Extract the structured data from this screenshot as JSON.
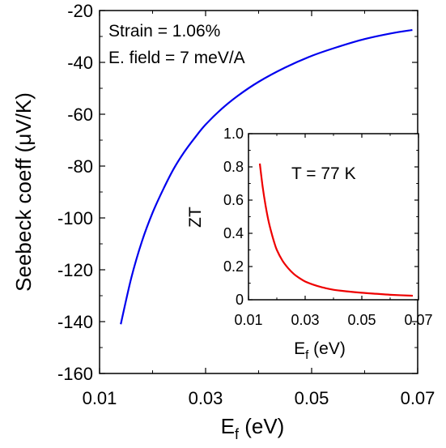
{
  "chart_data": [
    {
      "type": "line",
      "panel": "main",
      "xlabel": "E",
      "xlabel_sub": "f",
      "xlabel_unit": " (eV)",
      "ylabel": "Seebeck coeff (μV/K)",
      "xlim": [
        0.01,
        0.07
      ],
      "ylim": [
        -160,
        -20
      ],
      "xticks": [
        0.01,
        0.03,
        0.05,
        0.07
      ],
      "xtick_labels": [
        "0.01",
        "0.03",
        "0.05",
        "0.07"
      ],
      "yticks": [
        -160,
        -140,
        -120,
        -100,
        -80,
        -60,
        -40,
        -20
      ],
      "ytick_labels": [
        "-160",
        "-140",
        "-120",
        "-100",
        "-80",
        "-60",
        "-40",
        "-20"
      ],
      "annotations": [
        "Strain = 1.06%",
        "E. field = 7 meV/A"
      ],
      "grid": false,
      "series": [
        {
          "color": "#0000ee",
          "x": [
            0.014,
            0.016,
            0.018,
            0.02,
            0.022,
            0.024,
            0.026,
            0.028,
            0.03,
            0.033,
            0.036,
            0.04,
            0.045,
            0.05,
            0.055,
            0.06,
            0.065,
            0.069
          ],
          "y": [
            -141,
            -123,
            -109,
            -98,
            -89,
            -81,
            -74.5,
            -69,
            -64,
            -58,
            -53,
            -47.5,
            -42,
            -37.5,
            -34,
            -31,
            -28.8,
            -27.5
          ]
        }
      ]
    },
    {
      "type": "line",
      "panel": "inset",
      "xlabel": "E",
      "xlabel_sub": "f",
      "xlabel_unit": " (eV)",
      "ylabel": "ZT",
      "xlim": [
        0.01,
        0.07
      ],
      "ylim": [
        0,
        1.0
      ],
      "xticks": [
        0.01,
        0.03,
        0.05,
        0.07
      ],
      "xtick_labels": [
        "0.01",
        "0.03",
        "0.05",
        "0.07"
      ],
      "yticks": [
        0,
        0.2,
        0.4,
        0.6,
        0.8,
        1.0
      ],
      "ytick_labels": [
        "0",
        "0.2",
        "0.4",
        "0.6",
        "0.8",
        "1.0"
      ],
      "annotations": [
        "T = 77 K"
      ],
      "grid": false,
      "series": [
        {
          "color": "#ee0000",
          "x": [
            0.014,
            0.015,
            0.016,
            0.017,
            0.018,
            0.019,
            0.02,
            0.022,
            0.024,
            0.026,
            0.028,
            0.03,
            0.033,
            0.036,
            0.04,
            0.045,
            0.05,
            0.055,
            0.06,
            0.068
          ],
          "y": [
            0.82,
            0.68,
            0.57,
            0.48,
            0.41,
            0.35,
            0.3,
            0.235,
            0.19,
            0.155,
            0.13,
            0.11,
            0.09,
            0.075,
            0.06,
            0.05,
            0.042,
            0.036,
            0.03,
            0.024
          ]
        }
      ]
    }
  ]
}
